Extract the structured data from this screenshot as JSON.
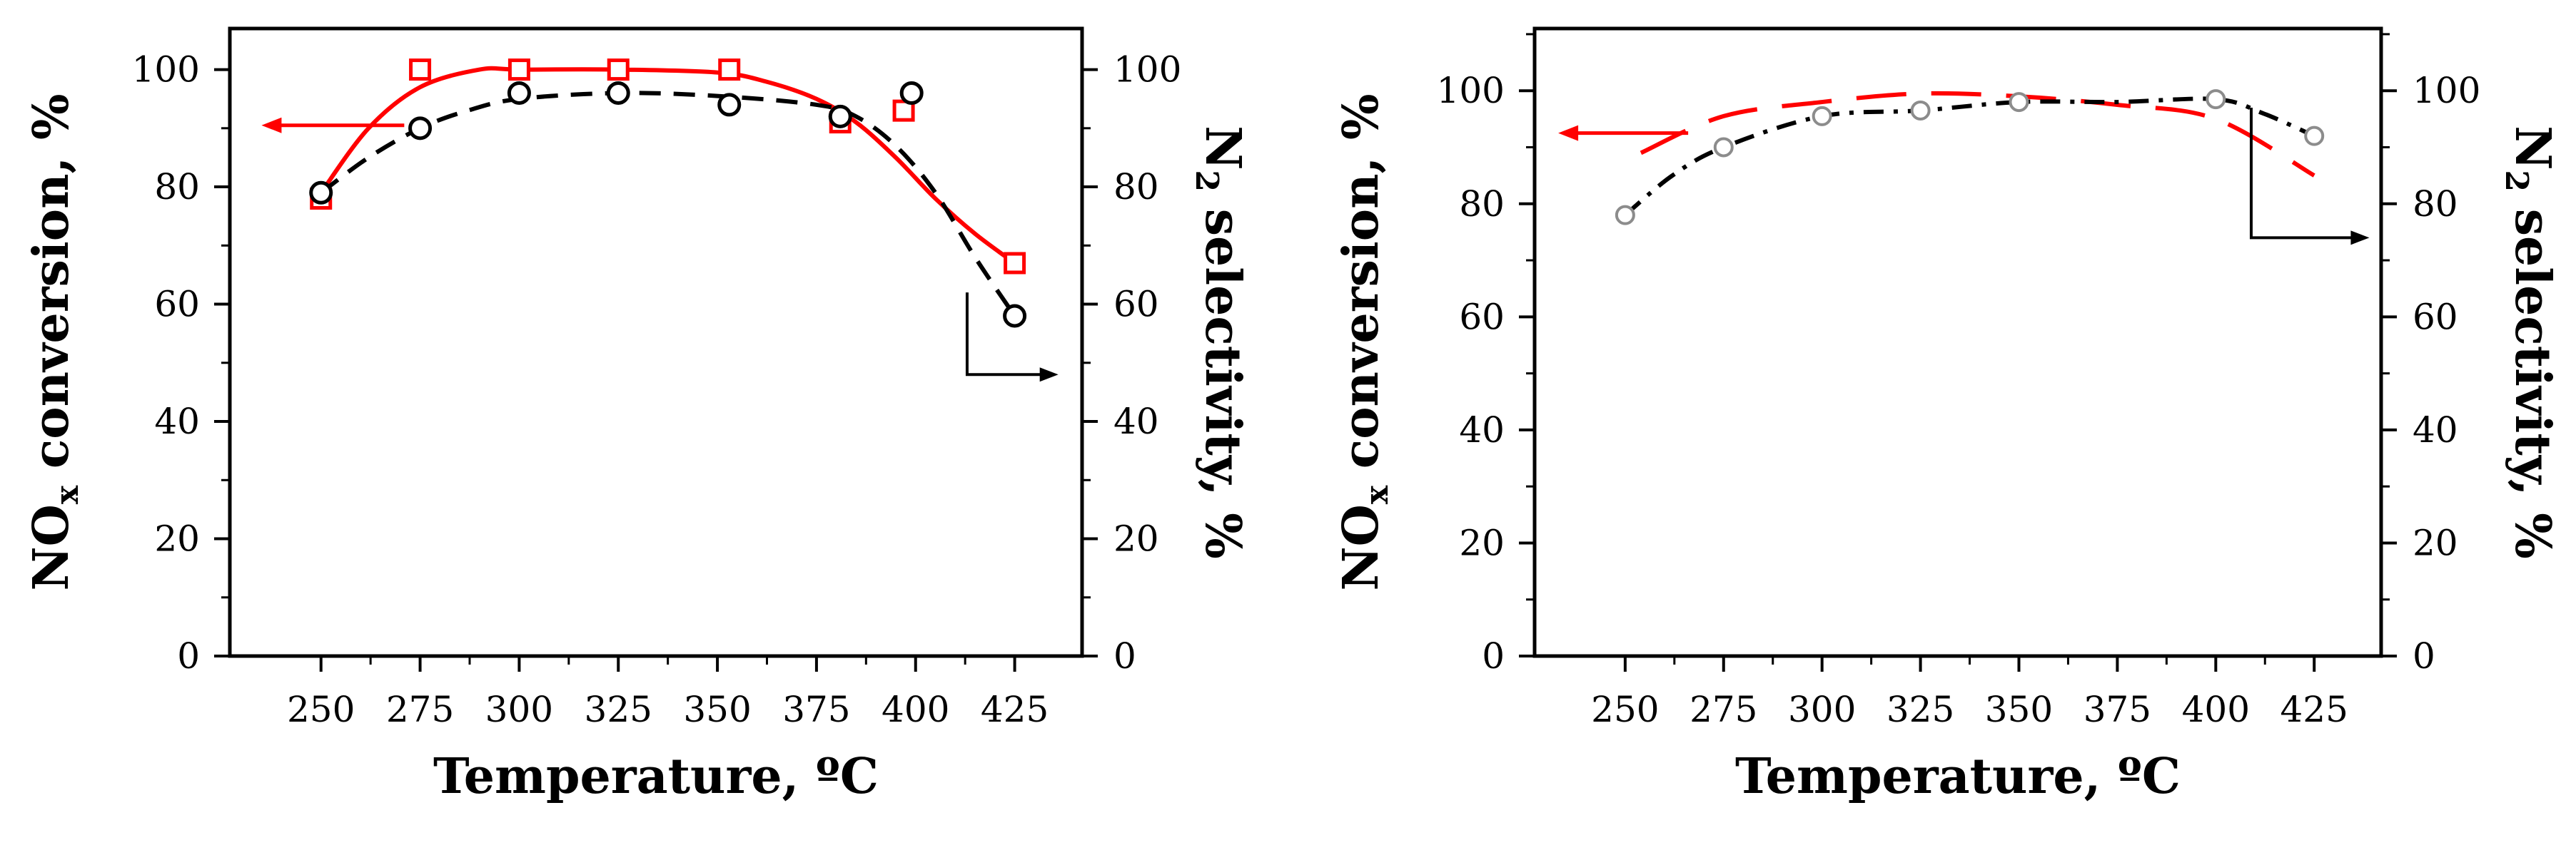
{
  "chart_data": [
    {
      "type": "line",
      "xlabel": "Temperature, ºC",
      "ylabel_main": "NO",
      "ylabel_sub": "x",
      "ylabel_rest": " conversion, %",
      "y2label_main": "N",
      "y2label_sub": "2",
      "y2label_rest": " selectivity, %",
      "xlim": [
        227,
        442
      ],
      "ylim": [
        0,
        107
      ],
      "y2lim": [
        0,
        107
      ],
      "xticks": [
        250,
        275,
        300,
        325,
        350,
        375,
        400,
        425
      ],
      "yticks": [
        0,
        20,
        40,
        60,
        80,
        100
      ],
      "y2ticks": [
        0,
        20,
        40,
        60,
        80,
        100
      ],
      "series": [
        {
          "name": "NOx conversion",
          "axis": "left",
          "color": "#ff0000",
          "marker": "square",
          "line": "solid",
          "x": [
            250,
            275,
            300,
            325,
            353,
            381,
            397,
            425
          ],
          "y": [
            78,
            100,
            100,
            100,
            100,
            91,
            93,
            67
          ],
          "fit_x": [
            250,
            262,
            275,
            290,
            300,
            325,
            350,
            362,
            375,
            385,
            395,
            405,
            415,
            425
          ],
          "fit_y": [
            79,
            90,
            97,
            100,
            100,
            100,
            99.5,
            98,
            95,
            91,
            85,
            78,
            72,
            67
          ]
        },
        {
          "name": "N2 selectivity",
          "axis": "right",
          "color": "#000000",
          "marker": "circle",
          "line": "dashed",
          "x": [
            250,
            275,
            300,
            325,
            353,
            381,
            399,
            425
          ],
          "y": [
            79,
            90,
            96,
            96,
            94,
            92,
            96,
            58
          ],
          "fit_x": [
            250,
            262,
            275,
            287,
            300,
            325,
            350,
            375,
            385,
            395,
            405,
            415,
            425
          ],
          "fit_y": [
            79,
            85,
            90,
            93,
            95,
            96,
            95.5,
            94,
            92,
            87,
            79,
            68,
            58
          ]
        }
      ],
      "annotations": [
        {
          "type": "arrow-left",
          "points_to": "left axis"
        },
        {
          "type": "arrow-right",
          "points_to": "right axis"
        }
      ]
    },
    {
      "type": "line",
      "xlabel": "Temperature, ºC",
      "ylabel_main": "NO",
      "ylabel_sub": "x",
      "ylabel_rest": " conversion, %",
      "y2label_main": "N",
      "y2label_sub": "2",
      "y2label_rest": " selectivity, %",
      "xlim": [
        227,
        442
      ],
      "ylim": [
        0,
        111
      ],
      "y2lim": [
        0,
        111
      ],
      "xticks": [
        250,
        275,
        300,
        325,
        350,
        375,
        400,
        425
      ],
      "yticks": [
        0,
        20,
        40,
        60,
        80,
        100
      ],
      "y2ticks": [
        0,
        20,
        40,
        60,
        80,
        100
      ],
      "series": [
        {
          "name": "NOx conversion",
          "axis": "left",
          "color": "#ff0000",
          "marker": "none",
          "line": "long-dash",
          "x": [
            254,
            275,
            300,
            325,
            350,
            375,
            400,
            425
          ],
          "y": [
            89,
            95.5,
            98,
            99.5,
            99,
            97.5,
            95,
            85
          ],
          "fit_x": [
            254,
            275,
            300,
            325,
            350,
            375,
            400,
            425
          ],
          "fit_y": [
            89,
            95.5,
            98,
            99.5,
            99,
            97.5,
            95,
            85
          ]
        },
        {
          "name": "N2 selectivity",
          "axis": "right",
          "color": "#000000",
          "marker": "open-circle-gray",
          "line": "dash-dot",
          "x": [
            250,
            275,
            300,
            325,
            350,
            400,
            425
          ],
          "y": [
            78,
            90,
            95.5,
            96.5,
            98,
            98.5,
            92
          ],
          "fit_x": [
            250,
            262,
            275,
            300,
            325,
            350,
            375,
            400,
            412,
            425
          ],
          "fit_y": [
            78,
            85,
            90,
            95.5,
            96.5,
            98,
            98,
            98.5,
            96,
            92
          ]
        }
      ],
      "annotations": [
        {
          "type": "arrow-left",
          "points_to": "left axis"
        },
        {
          "type": "arrow-right",
          "points_to": "right axis"
        }
      ]
    }
  ]
}
